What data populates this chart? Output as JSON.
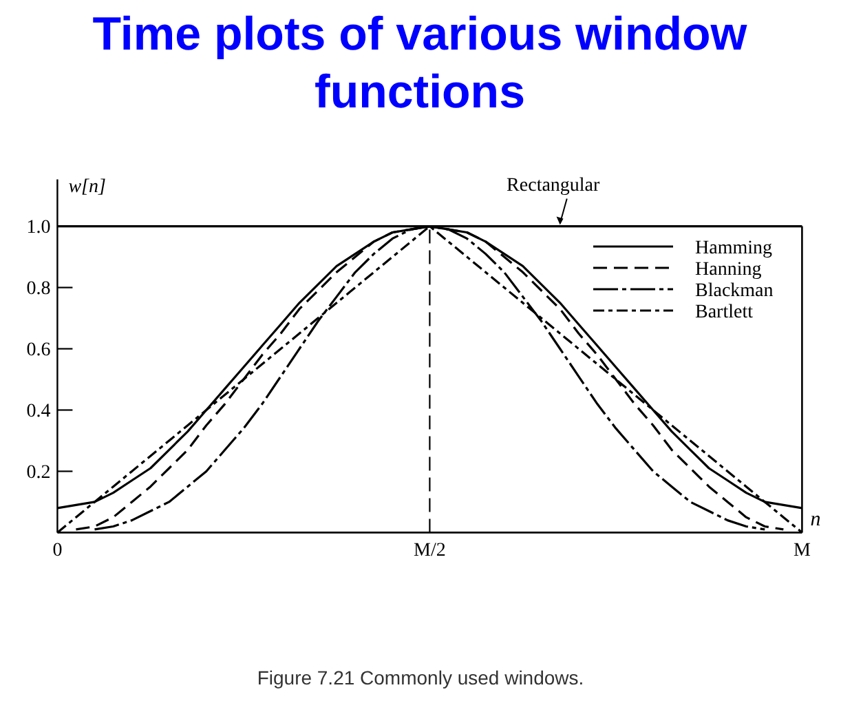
{
  "chart_data": {
    "type": "line",
    "title": "Time plots of various window functions",
    "xlabel": "n",
    "ylabel": "w[n]",
    "categories": [
      "0",
      null,
      null,
      null,
      null,
      null,
      null,
      null,
      null,
      null,
      null,
      null,
      null,
      null,
      null,
      null,
      null,
      null,
      null,
      null,
      "M/2",
      null,
      null,
      null,
      null,
      null,
      null,
      null,
      null,
      null,
      null,
      null,
      null,
      null,
      null,
      null,
      null,
      null,
      null,
      null,
      "M"
    ],
    "series": [
      {
        "color": "#000000",
        "line_style": "solid",
        "values": [
          1,
          1,
          1,
          1,
          1,
          1,
          1,
          1,
          1,
          1,
          1,
          1,
          1,
          1,
          1,
          1,
          1,
          1,
          1,
          1,
          1,
          1,
          1,
          1,
          1,
          1,
          1,
          1,
          1,
          1,
          1,
          1,
          1,
          1,
          1,
          1,
          1,
          1,
          1,
          1,
          1
        ]
      },
      {
        "name": "Hamming",
        "color": "#000000",
        "line_style": "solid",
        "values": [
          0.08,
          0.09,
          0.1,
          0.13,
          0.17,
          0.21,
          0.27,
          0.33,
          0.4,
          0.47,
          0.54,
          0.61,
          0.68,
          0.75,
          0.81,
          0.87,
          0.91,
          0.95,
          0.98,
          0.99,
          1.0,
          0.99,
          0.98,
          0.95,
          0.91,
          0.87,
          0.81,
          0.75,
          0.68,
          0.61,
          0.54,
          0.47,
          0.4,
          0.33,
          0.27,
          0.21,
          0.17,
          0.13,
          0.1,
          0.09,
          0.08
        ]
      },
      {
        "name": "Hanning",
        "color": "#000000",
        "line_style": "dashed",
        "values": [
          null,
          0.01,
          0.02,
          0.05,
          0.1,
          0.15,
          0.21,
          0.27,
          0.35,
          0.42,
          0.5,
          0.58,
          0.65,
          0.73,
          0.79,
          0.85,
          0.9,
          0.95,
          0.98,
          0.99,
          1.0,
          0.99,
          0.98,
          0.95,
          0.9,
          0.85,
          0.79,
          0.73,
          0.65,
          0.58,
          0.5,
          0.42,
          0.35,
          0.27,
          0.21,
          0.15,
          0.1,
          0.05,
          0.02,
          0.01,
          null
        ]
      },
      {
        "name": "Blackman",
        "color": "#000000",
        "line_style": "longdashdot",
        "values": [
          null,
          null,
          0.01,
          0.02,
          0.04,
          0.07,
          0.1,
          0.15,
          0.2,
          0.27,
          0.34,
          0.42,
          0.51,
          0.6,
          0.69,
          0.77,
          0.85,
          0.91,
          0.96,
          0.99,
          1.0,
          0.99,
          0.96,
          0.91,
          0.85,
          0.77,
          0.69,
          0.6,
          0.51,
          0.42,
          0.34,
          0.27,
          0.2,
          0.15,
          0.1,
          0.07,
          0.04,
          0.02,
          0.01,
          null,
          null
        ]
      },
      {
        "name": "Bartlett",
        "color": "#000000",
        "line_style": "dashdot",
        "values": [
          0,
          0.05,
          0.1,
          0.15,
          0.2,
          0.25,
          0.3,
          0.35,
          0.4,
          0.45,
          0.5,
          0.55,
          0.6,
          0.65,
          0.7,
          0.75,
          0.8,
          0.85,
          0.9,
          0.95,
          1.0,
          0.95,
          0.9,
          0.85,
          0.8,
          0.75,
          0.7,
          0.65,
          0.6,
          0.55,
          0.5,
          0.45,
          0.4,
          0.35,
          0.3,
          0.25,
          0.2,
          0.15,
          0.1,
          0.05,
          0
        ]
      }
    ],
    "ylim": [
      0,
      1
    ],
    "yticks": [
      0.2,
      0.4,
      0.6,
      0.8,
      {
        "value": 1,
        "label": "1.0"
      }
    ],
    "ref_lines": [
      {
        "axis": "x",
        "value": "M/2",
        "line_style": "dashed"
      }
    ],
    "annotations": [
      "Rectangular",
      "Figure 7.21 Commonly used windows."
    ],
    "legend": "top right",
    "marker": "none"
  }
}
